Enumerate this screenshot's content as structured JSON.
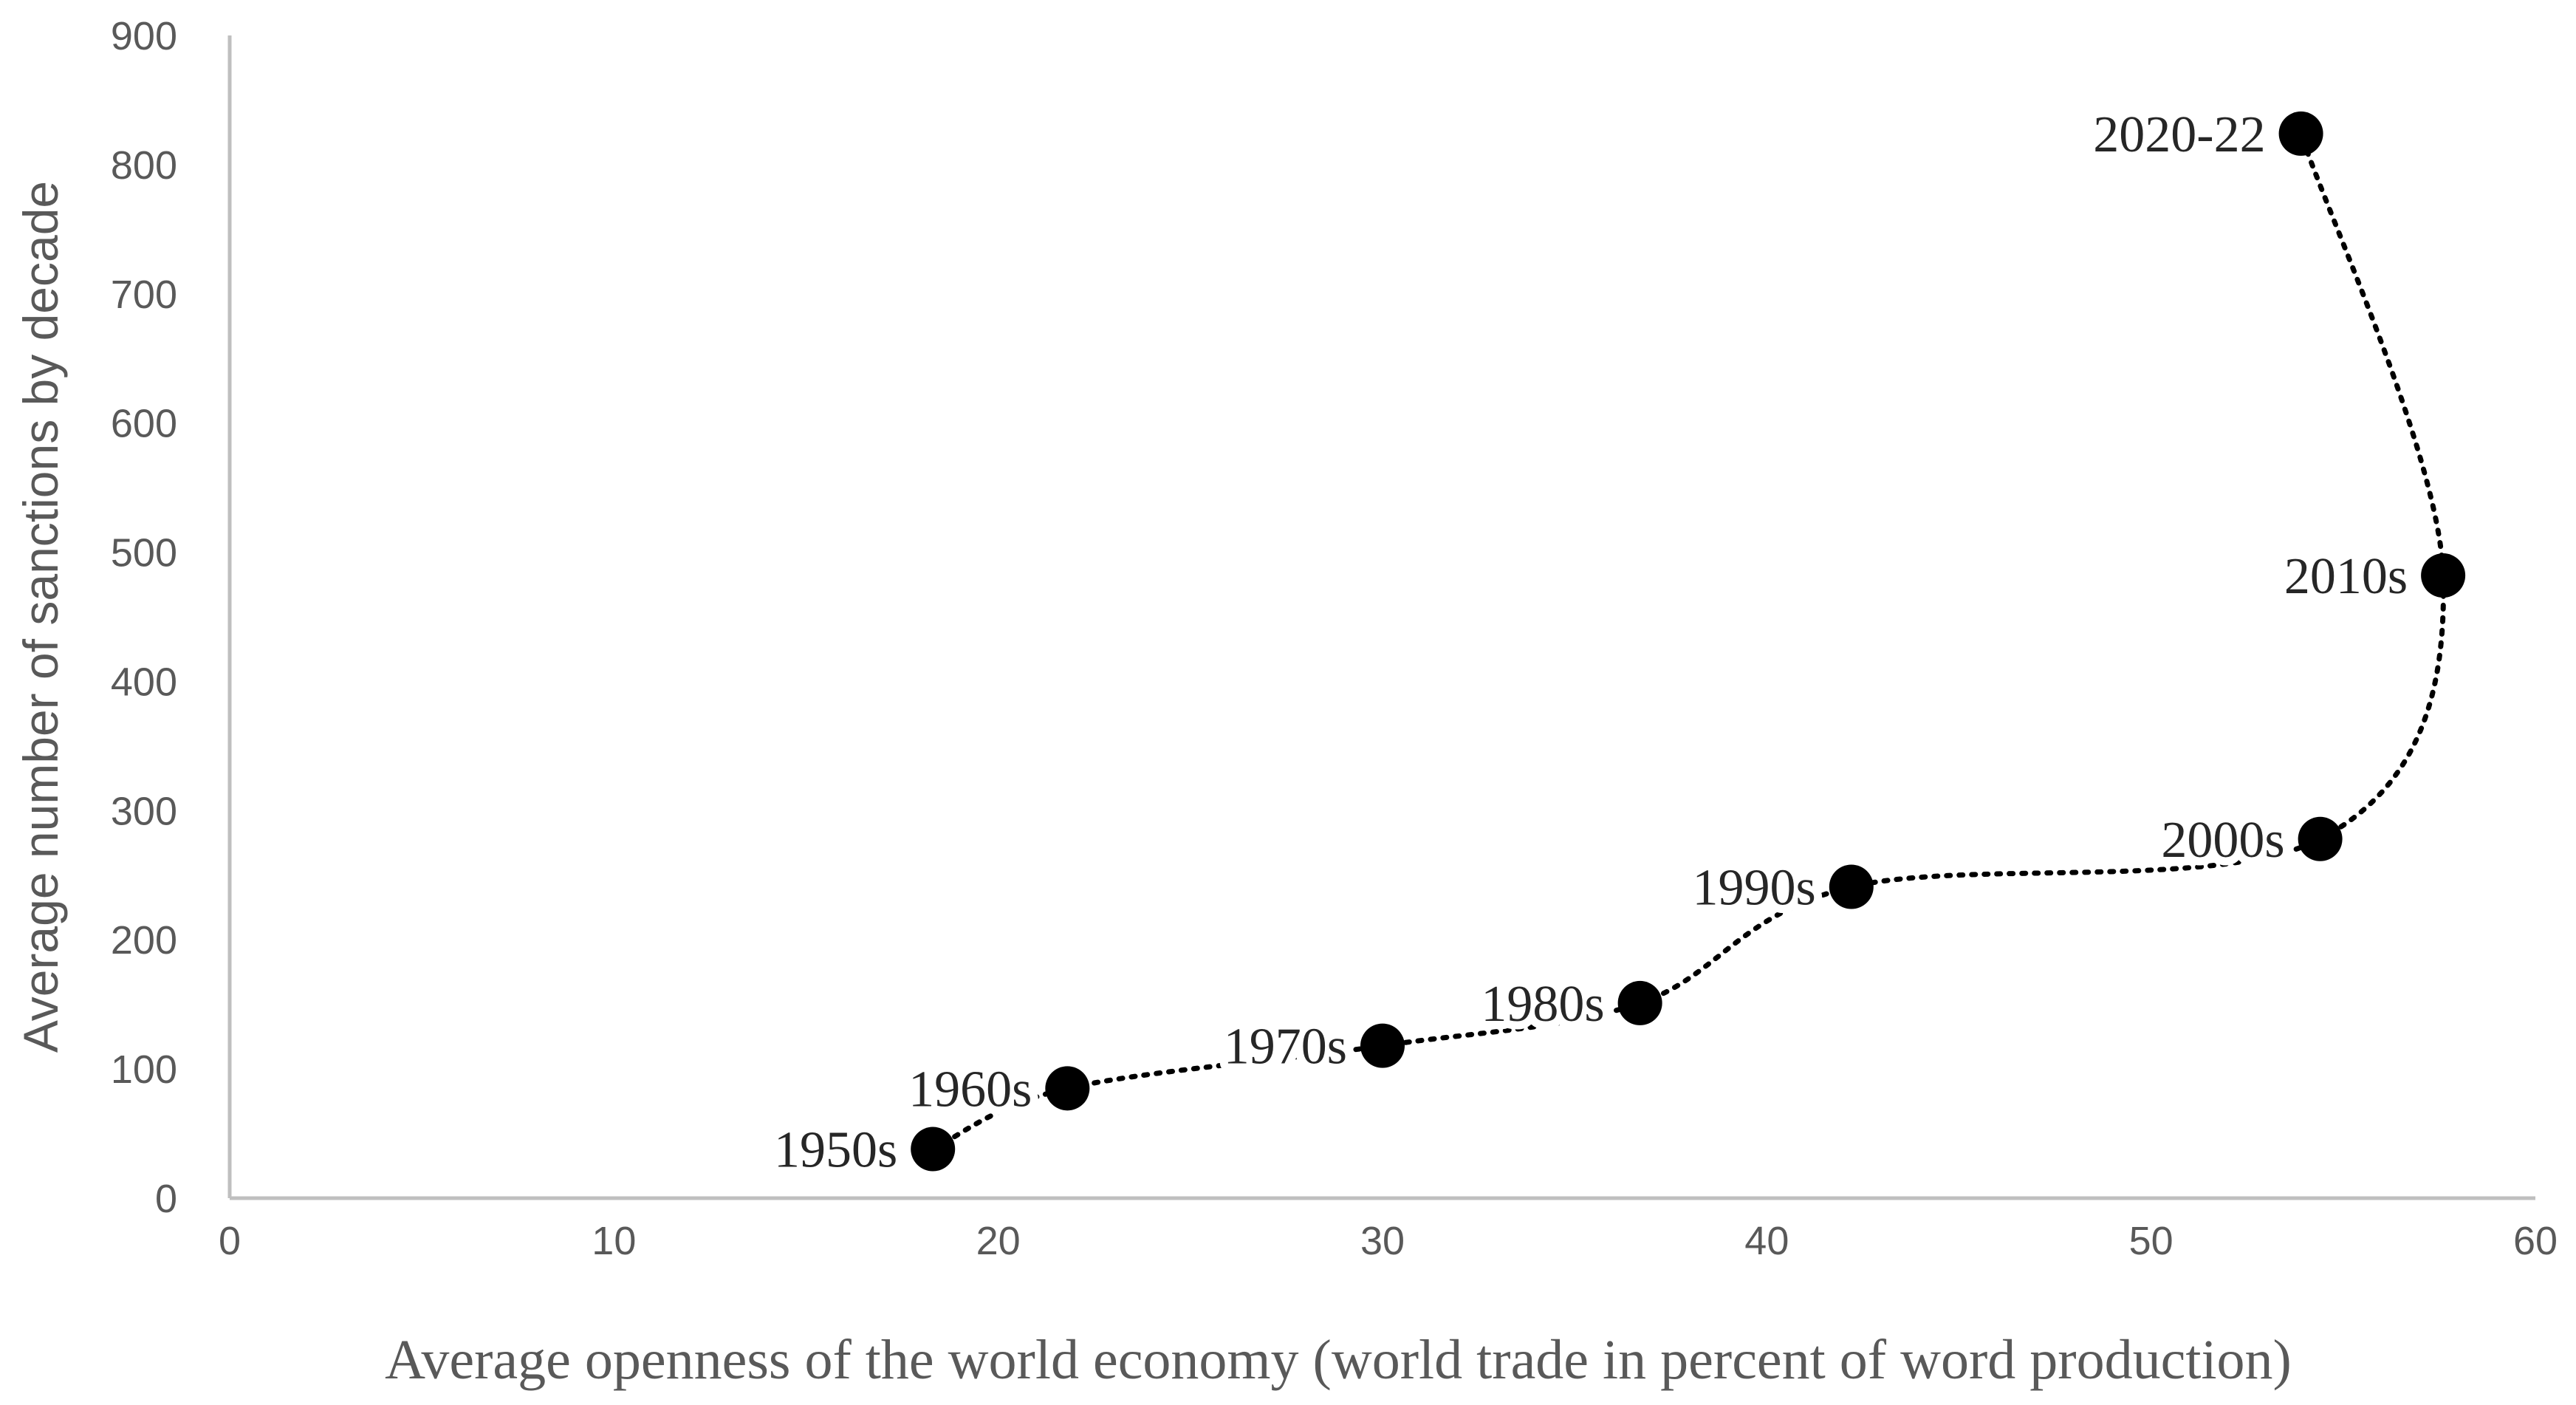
{
  "chart_data": {
    "type": "scatter",
    "title": "",
    "xlabel": "Average openness of the world economy (world trade in percent of word production)",
    "ylabel": "Average number of sanctions by decade",
    "xlim": [
      0,
      60
    ],
    "ylim": [
      0,
      900
    ],
    "xticks": [
      0,
      10,
      20,
      30,
      40,
      50,
      60
    ],
    "yticks": [
      0,
      100,
      200,
      300,
      400,
      500,
      600,
      700,
      800,
      900
    ],
    "grid": false,
    "connector": "dotted",
    "colors": {
      "marker": "#000000",
      "axis": "#bfbfbf",
      "tick_text": "#595959",
      "label_text": "#262626"
    },
    "points": [
      {
        "label": "1950s",
        "x": 18.3,
        "y": 38
      },
      {
        "label": "1960s",
        "x": 21.8,
        "y": 85
      },
      {
        "label": "1970s",
        "x": 30.0,
        "y": 118
      },
      {
        "label": "1980s",
        "x": 36.7,
        "y": 151
      },
      {
        "label": "1990s",
        "x": 42.2,
        "y": 241
      },
      {
        "label": "2000s",
        "x": 54.4,
        "y": 278
      },
      {
        "label": "2010s",
        "x": 57.6,
        "y": 482
      },
      {
        "label": "2020-22",
        "x": 53.9,
        "y": 824
      }
    ]
  }
}
